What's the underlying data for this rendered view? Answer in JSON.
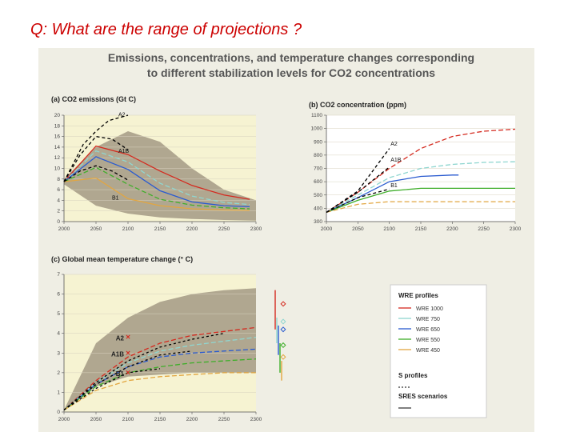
{
  "slide": {
    "question": "Q:  What are the range of projections ?"
  },
  "figure": {
    "title_line1": "Emissions, concentrations, and temperature changes corresponding",
    "title_line2": "to different stabilization levels for CO2 concentrations"
  },
  "colors": {
    "wre1000": "#d42a1f",
    "wre750": "#8fd6d0",
    "wre650": "#2a5bd0",
    "wre550": "#3fae2a",
    "wre450": "#e2a640",
    "a2": "#000000",
    "band": "#a39985",
    "plot_bg": "#f6f3d2",
    "fig_bg": "#efeee4"
  },
  "chart_data": [
    {
      "id": "a",
      "type": "line",
      "title": "(a) CO2 emissions (Gt C)",
      "x": [
        2000,
        2050,
        2100,
        2150,
        2200,
        2250,
        2300
      ],
      "xlim": [
        2000,
        2300
      ],
      "ylim": [
        0,
        20
      ],
      "xticks": [
        "2000",
        "2050",
        "2100",
        "2150",
        "2200",
        "2250",
        "2300"
      ],
      "yticks": [
        "0",
        "2",
        "4",
        "6",
        "8",
        "10",
        "12",
        "14",
        "16",
        "18",
        "20"
      ],
      "band_upper": [
        8,
        14,
        17,
        15,
        10,
        6,
        4
      ],
      "band_lower": [
        7,
        3,
        1.5,
        0.8,
        0.5,
        0.3,
        0.2
      ],
      "series": [
        {
          "name": "WRE 1000",
          "color": "#d42a1f",
          "dash": "",
          "x": [
            2000,
            2050,
            2100,
            2150,
            2200,
            2250,
            2290
          ],
          "values": [
            7.5,
            14.2,
            12.6,
            9.5,
            6.8,
            5.0,
            4.2
          ]
        },
        {
          "name": "WRE 750",
          "color": "#8fd6d0",
          "dash": "6 3",
          "x": [
            2000,
            2050,
            2100,
            2150,
            2200,
            2250,
            2290
          ],
          "values": [
            7.5,
            13.3,
            11.2,
            7.2,
            4.8,
            3.6,
            3.2
          ]
        },
        {
          "name": "WRE 650",
          "color": "#2a5bd0",
          "dash": "",
          "x": [
            2000,
            2050,
            2100,
            2150,
            2200,
            2250,
            2290
          ],
          "values": [
            7.5,
            12.2,
            9.8,
            5.8,
            3.7,
            3.0,
            2.8
          ]
        },
        {
          "name": "WRE 550",
          "color": "#3fae2a",
          "dash": "6 3",
          "x": [
            2000,
            2050,
            2100,
            2150,
            2200,
            2250,
            2290
          ],
          "values": [
            7.5,
            10.2,
            7.0,
            4.2,
            3.1,
            2.6,
            2.4
          ]
        },
        {
          "name": "WRE 450",
          "color": "#e2a640",
          "dash": "",
          "x": [
            2000,
            2050,
            2100,
            2150,
            2200,
            2250,
            2290
          ],
          "values": [
            7.5,
            8.2,
            4.3,
            3.0,
            2.4,
            2.2,
            2.1
          ]
        },
        {
          "name": "A2",
          "color": "#000000",
          "dash": "4 3",
          "x": [
            2000,
            2030,
            2050,
            2070,
            2100
          ],
          "values": [
            7.5,
            14.5,
            17.0,
            19.0,
            20.0
          ]
        },
        {
          "name": "A1B",
          "color": "#000000",
          "dash": "4 3",
          "x": [
            2000,
            2025,
            2050,
            2075,
            2100
          ],
          "values": [
            7.5,
            12.5,
            16.0,
            15.5,
            13.5
          ]
        },
        {
          "name": "B1",
          "color": "#000000",
          "dash": "4 3",
          "x": [
            2000,
            2025,
            2050,
            2075,
            2100
          ],
          "values": [
            7.5,
            9.5,
            10.5,
            9.5,
            7.8
          ]
        }
      ],
      "annotations": [
        "A2",
        "A1B",
        "B1"
      ]
    },
    {
      "id": "b",
      "type": "line",
      "title": "(b) CO2 concentration (ppm)",
      "x": [
        2000,
        2050,
        2100,
        2150,
        2200,
        2250,
        2300
      ],
      "xlim": [
        2000,
        2300
      ],
      "ylim": [
        300,
        1100
      ],
      "xticks": [
        "2000",
        "2050",
        "2100",
        "2150",
        "2200",
        "2250",
        "2300"
      ],
      "yticks": [
        "300",
        "400",
        "500",
        "600",
        "700",
        "800",
        "900",
        "1000",
        "1100"
      ],
      "series": [
        {
          "name": "WRE 1000",
          "color": "#d42a1f",
          "dash": "6 3",
          "x": [
            2000,
            2050,
            2100,
            2150,
            2200,
            2250,
            2300
          ],
          "values": [
            370,
            520,
            700,
            850,
            940,
            980,
            995
          ]
        },
        {
          "name": "WRE 750",
          "color": "#8fd6d0",
          "dash": "6 3",
          "x": [
            2000,
            2050,
            2100,
            2150,
            2200,
            2250,
            2300
          ],
          "values": [
            370,
            500,
            630,
            700,
            730,
            745,
            750
          ]
        },
        {
          "name": "WRE 650",
          "color": "#2a5bd0",
          "dash": "",
          "x": [
            2000,
            2050,
            2100,
            2150,
            2200,
            2210
          ],
          "values": [
            370,
            480,
            600,
            640,
            650,
            650
          ]
        },
        {
          "name": "WRE 550",
          "color": "#3fae2a",
          "dash": "",
          "x": [
            2000,
            2050,
            2100,
            2150,
            2200,
            2250,
            2300
          ],
          "values": [
            370,
            460,
            530,
            550,
            550,
            550,
            550
          ]
        },
        {
          "name": "WRE 450",
          "color": "#e2a640",
          "dash": "6 3",
          "x": [
            2000,
            2050,
            2100,
            2150,
            2200,
            2250,
            2300
          ],
          "values": [
            370,
            430,
            450,
            450,
            450,
            450,
            450
          ]
        },
        {
          "name": "A2",
          "color": "#000000",
          "dash": "4 3",
          "x": [
            2000,
            2050,
            2100
          ],
          "values": [
            370,
            530,
            850
          ]
        },
        {
          "name": "A1B",
          "color": "#000000",
          "dash": "4 3",
          "x": [
            2000,
            2050,
            2100
          ],
          "values": [
            370,
            520,
            710
          ]
        },
        {
          "name": "B1",
          "color": "#000000",
          "dash": "4 3",
          "x": [
            2000,
            2050,
            2100
          ],
          "values": [
            370,
            480,
            545
          ]
        }
      ],
      "annotations": [
        "A2",
        "A1B",
        "B1"
      ]
    },
    {
      "id": "c",
      "type": "line",
      "title": "(c) Global mean temperature change (° C)",
      "x": [
        2000,
        2050,
        2100,
        2150,
        2200,
        2250,
        2300
      ],
      "xlim": [
        2000,
        2300
      ],
      "ylim": [
        0,
        7
      ],
      "xticks": [
        "2000",
        "2050",
        "2100",
        "2150",
        "2200",
        "2250",
        "2300"
      ],
      "yticks": [
        "0",
        "1",
        "2",
        "3",
        "4",
        "5",
        "6",
        "7"
      ],
      "band_upper": [
        0.1,
        3.5,
        4.8,
        5.6,
        6.0,
        6.2,
        6.3
      ],
      "band_lower": [
        0.1,
        1.3,
        1.8,
        1.9,
        2.0,
        2.0,
        2.0
      ],
      "series": [
        {
          "name": "WRE 1000",
          "color": "#d42a1f",
          "dash": "6 3",
          "x": [
            2000,
            2050,
            2100,
            2150,
            2200,
            2250,
            2300
          ],
          "values": [
            0.1,
            1.6,
            2.8,
            3.5,
            3.9,
            4.1,
            4.3
          ]
        },
        {
          "name": "WRE 750",
          "color": "#8fd6d0",
          "dash": "6 3",
          "x": [
            2000,
            2050,
            2100,
            2150,
            2200,
            2250,
            2300
          ],
          "values": [
            0.1,
            1.5,
            2.5,
            3.1,
            3.4,
            3.6,
            3.8
          ]
        },
        {
          "name": "WRE 650",
          "color": "#2a5bd0",
          "dash": "6 3",
          "x": [
            2000,
            2050,
            2100,
            2150,
            2200,
            2250,
            2300
          ],
          "values": [
            0.1,
            1.4,
            2.3,
            2.8,
            3.0,
            3.1,
            3.2
          ]
        },
        {
          "name": "WRE 550",
          "color": "#3fae2a",
          "dash": "6 3",
          "x": [
            2000,
            2050,
            2100,
            2150,
            2200,
            2250,
            2300
          ],
          "values": [
            0.1,
            1.3,
            2.0,
            2.3,
            2.5,
            2.6,
            2.7
          ]
        },
        {
          "name": "WRE 450",
          "color": "#e2a640",
          "dash": "6 3",
          "x": [
            2000,
            2050,
            2100,
            2150,
            2200,
            2250,
            2300
          ],
          "values": [
            0.1,
            1.1,
            1.6,
            1.8,
            1.9,
            2.0,
            2.0
          ]
        },
        {
          "name": "S profiles",
          "color": "#000000",
          "dash": "3 3",
          "x": [
            2000,
            2050,
            2100,
            2150,
            2200,
            2250
          ],
          "values": [
            0.1,
            1.5,
            2.6,
            3.3,
            3.7,
            4.0
          ]
        },
        {
          "name": "S profiles",
          "color": "#000000",
          "dash": "3 3",
          "x": [
            2000,
            2050,
            2100,
            2150,
            2200
          ],
          "values": [
            0.1,
            1.4,
            2.3,
            2.9,
            3.1
          ]
        },
        {
          "name": "S profiles",
          "color": "#000000",
          "dash": "3 3",
          "x": [
            2000,
            2050,
            2100,
            2150
          ],
          "values": [
            0.1,
            1.2,
            2.0,
            2.2
          ]
        }
      ],
      "markers": [
        {
          "label": "A2",
          "x": 2100,
          "y": 3.8,
          "color": "#d42a1f"
        },
        {
          "label": "A1B",
          "x": 2100,
          "y": 3.0,
          "color": "#d42a1f"
        },
        {
          "label": "B1",
          "x": 2100,
          "y": 2.0,
          "color": "#d42a1f"
        }
      ],
      "ranges": [
        {
          "color": "#d42a1f",
          "low": 4.2,
          "high": 6.2,
          "mid": 5.5
        },
        {
          "color": "#8fd6d0",
          "low": 3.5,
          "high": 4.8,
          "mid": 4.6
        },
        {
          "color": "#2a5bd0",
          "low": 2.9,
          "high": 4.4,
          "mid": 4.2
        },
        {
          "color": "#3fae2a",
          "low": 2.0,
          "high": 3.5,
          "mid": 3.4
        },
        {
          "color": "#e2a640",
          "low": 1.6,
          "high": 2.6,
          "mid": 2.8
        }
      ]
    }
  ],
  "legend": {
    "title": "WRE profiles",
    "items": [
      {
        "label": "WRE 1000",
        "color": "#d42a1f"
      },
      {
        "label": "WRE 750",
        "color": "#8fd6d0"
      },
      {
        "label": "WRE 650",
        "color": "#2a5bd0"
      },
      {
        "label": "WRE 550",
        "color": "#3fae2a"
      },
      {
        "label": "WRE 450",
        "color": "#e2a640"
      }
    ],
    "s_profiles": "S profiles",
    "sres": "SRES scenarios"
  }
}
